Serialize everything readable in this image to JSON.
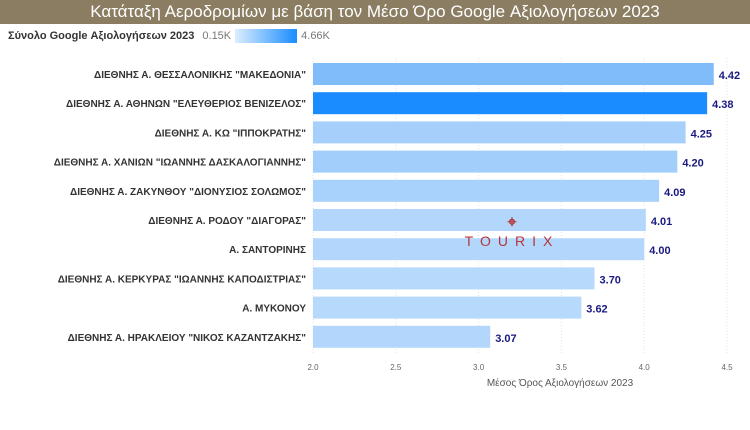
{
  "title": "Κατάταξη Αεροδρομίων με βάση τον Μέσο Όρο Google Αξιολογήσεων 2023",
  "legend": {
    "title": "Σύνολο Google Αξιολογήσεων 2023",
    "min_label": "0.15K",
    "max_label": "4.66K",
    "color_low": "#dceefe",
    "color_high": "#1a8cff"
  },
  "watermark": {
    "icon": "pin-icon",
    "text": "TOURIX",
    "color": "#b5363a"
  },
  "chart_data": {
    "type": "bar",
    "orientation": "horizontal",
    "title": "Κατάταξη Αεροδρομίων με βάση τον Μέσο Όρο Google Αξιολογήσεων 2023",
    "xlabel": "Μέσος Όρος Αξιολογήσεων 2023",
    "ylabel": "",
    "xlim": [
      2.0,
      4.5
    ],
    "xticks": [
      "2.0",
      "2.5",
      "3.0",
      "3.5",
      "4.0",
      "4.5"
    ],
    "grid": true,
    "categories": [
      "ΔΙΕΘΝΗΣ Α. ΘΕΣΣΑΛΟΝΙΚΗΣ \"ΜΑΚΕΔΟΝΙΑ\"",
      "ΔΙΕΘΝΗΣ Α. ΑΘΗΝΩΝ \"ΕΛΕΥΘΕΡΙΟΣ ΒΕΝΙΖΕΛΟΣ\"",
      "ΔΙΕΘΝΗΣ Α. ΚΩ \"ΙΠΠΟΚΡΑΤΗΣ\"",
      "ΔΙΕΘΝΗΣ Α. ΧΑΝΙΩΝ \"ΙΩΑΝΝΗΣ ΔΑΣΚΑΛΟΓΙΑΝΝΗΣ\"",
      "ΔΙΕΘΝΗΣ Α. ΖΑΚΥΝΘΟΥ \"ΔΙΟΝΥΣΙΟΣ ΣΟΛΩΜΟΣ\"",
      "ΔΙΕΘΝΗΣ Α. ΡΟΔΟΥ \"ΔΙΑΓΟΡΑΣ\"",
      "Α. ΣΑΝΤΟΡΙΝΗΣ",
      "ΔΙΕΘΝΗΣ Α. ΚΕΡΚΥΡΑΣ \"ΙΩΑΝΝΗΣ ΚΑΠΟΔΙΣΤΡΙΑΣ\"",
      "Α. ΜΥΚΟΝΟΥ",
      "ΔΙΕΘΝΗΣ Α. ΗΡΑΚΛΕΙΟΥ \"ΝΙΚΟΣ ΚΑΖΑΝΤΖΑΚΗΣ\""
    ],
    "values": [
      4.42,
      4.38,
      4.25,
      4.2,
      4.09,
      4.01,
      4.0,
      3.7,
      3.62,
      3.07
    ],
    "value_labels": [
      "4.42",
      "4.38",
      "4.25",
      "4.20",
      "4.09",
      "4.01",
      "4.00",
      "3.70",
      "3.62",
      "3.07"
    ],
    "bar_colors": [
      "#80bcf9",
      "#1a8cff",
      "#a6d0fb",
      "#a2cefb",
      "#a8d1fb",
      "#b3d7fc",
      "#b3d7fc",
      "#b6d9fc",
      "#b6d9fc",
      "#b3d7fc"
    ]
  }
}
